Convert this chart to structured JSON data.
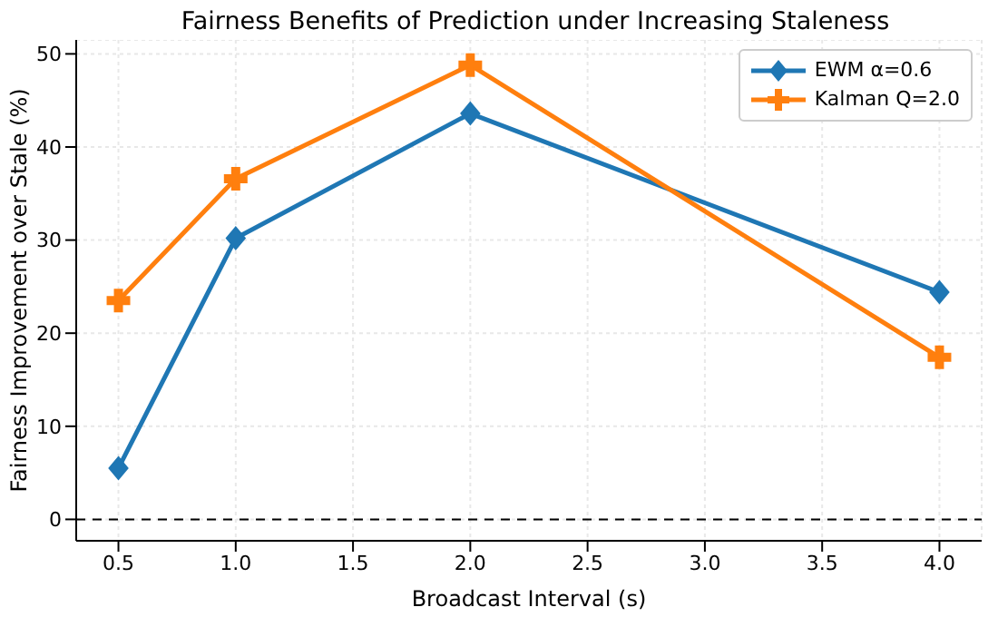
{
  "chart_data": {
    "type": "line",
    "title": "Fairness Benefits of Prediction under Increasing Staleness",
    "xlabel": "Broadcast Interval (s)",
    "ylabel": "Fairness Improvement over Stale (%)",
    "x": [
      0.5,
      1.0,
      2.0,
      4.0
    ],
    "series": [
      {
        "name": "EWM α=0.6",
        "color": "#1f77b4",
        "marker": "diamond",
        "values": [
          5.5,
          30.2,
          43.6,
          24.4
        ]
      },
      {
        "name": "Kalman Q=2.0",
        "color": "#ff7f0e",
        "marker": "cross",
        "values": [
          23.5,
          36.6,
          48.8,
          17.4
        ]
      }
    ],
    "xlim": [
      0.32,
      4.18
    ],
    "xticks": [
      0.5,
      {
        "value": 1,
        "label": "1.0"
      },
      1.5,
      {
        "value": 2,
        "label": "2.0"
      },
      2.5,
      {
        "value": 3,
        "label": "3.0"
      },
      3.5,
      {
        "value": 4,
        "label": "4.0"
      }
    ],
    "ylim": [
      -2.3,
      51.5
    ],
    "yticks": [
      0,
      10,
      20,
      30,
      40,
      50
    ],
    "ref_lines": [
      {
        "axis": "y",
        "value": 0,
        "color": "#000000",
        "line_style": "dashed"
      }
    ],
    "grid": true,
    "legend": "top right",
    "line_style": "solid"
  }
}
